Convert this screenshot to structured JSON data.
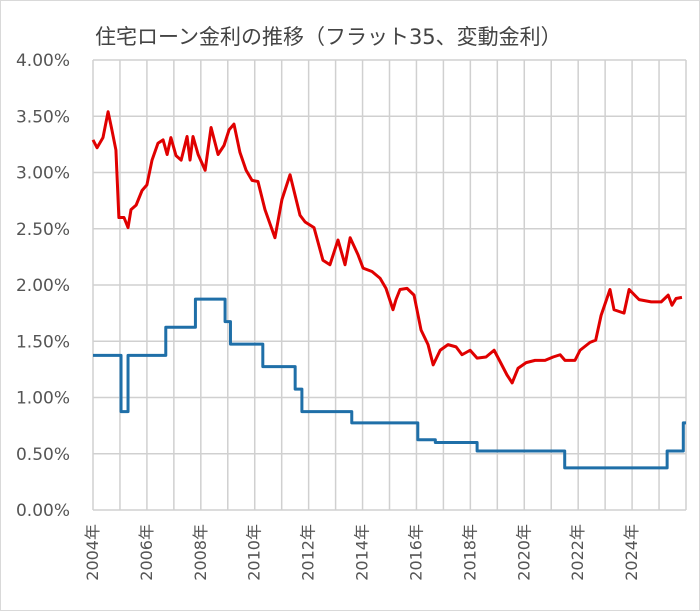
{
  "chart_data": {
    "type": "line",
    "title": "住宅ローン金利の推移（フラット35、変動金利）",
    "xlabel": "",
    "ylabel": "",
    "xlim": [
      2004,
      2026
    ],
    "ylim": [
      0,
      4
    ],
    "grid": true,
    "y_ticks": [
      "0.00%",
      "0.50%",
      "1.00%",
      "1.50%",
      "2.00%",
      "2.50%",
      "3.00%",
      "3.50%",
      "4.00%"
    ],
    "x_ticks": [
      "2004年",
      "2006年",
      "2008年",
      "2010年",
      "2012年",
      "2014年",
      "2016年",
      "2018年",
      "2020年",
      "2022年",
      "2024年"
    ],
    "series": [
      {
        "name": "フラット35",
        "color": "#e00000",
        "x": [
          2004.0,
          2004.15,
          2004.37,
          2004.56,
          2004.7,
          2004.85,
          2004.96,
          2005.15,
          2005.3,
          2005.41,
          2005.6,
          2005.82,
          2006.0,
          2006.19,
          2006.41,
          2006.6,
          2006.75,
          2006.89,
          2007.08,
          2007.27,
          2007.49,
          2007.6,
          2007.71,
          2007.9,
          2008.16,
          2008.38,
          2008.64,
          2008.86,
          2009.05,
          2009.23,
          2009.45,
          2009.68,
          2009.9,
          2010.12,
          2010.38,
          2010.75,
          2011.01,
          2011.31,
          2011.68,
          2011.87,
          2012.2,
          2012.53,
          2012.79,
          2013.09,
          2013.35,
          2013.54,
          2013.83,
          2014.02,
          2014.35,
          2014.65,
          2014.87,
          2015.13,
          2015.24,
          2015.39,
          2015.65,
          2015.91,
          2016.17,
          2016.43,
          2016.62,
          2016.88,
          2017.17,
          2017.47,
          2017.69,
          2017.99,
          2018.25,
          2018.58,
          2018.88,
          2019.1,
          2019.36,
          2019.55,
          2019.77,
          2020.07,
          2020.4,
          2020.77,
          2021.07,
          2021.33,
          2021.51,
          2021.88,
          2022.07,
          2022.44,
          2022.65,
          2022.85,
          2023.18,
          2023.33,
          2023.7,
          2023.89,
          2024.26,
          2024.71,
          2025.08,
          2025.34,
          2025.48,
          2025.63,
          2025.85
        ],
        "values": [
          3.29,
          3.22,
          3.31,
          3.54,
          3.38,
          3.2,
          2.6,
          2.6,
          2.51,
          2.67,
          2.71,
          2.84,
          2.89,
          3.11,
          3.26,
          3.29,
          3.16,
          3.31,
          3.15,
          3.11,
          3.32,
          3.11,
          3.32,
          3.16,
          3.02,
          3.4,
          3.16,
          3.24,
          3.38,
          3.43,
          3.18,
          3.02,
          2.93,
          2.92,
          2.67,
          2.42,
          2.76,
          2.98,
          2.62,
          2.56,
          2.51,
          2.22,
          2.18,
          2.4,
          2.18,
          2.42,
          2.27,
          2.15,
          2.12,
          2.06,
          1.97,
          1.78,
          1.87,
          1.96,
          1.97,
          1.91,
          1.6,
          1.47,
          1.29,
          1.42,
          1.47,
          1.45,
          1.38,
          1.42,
          1.35,
          1.36,
          1.42,
          1.32,
          1.2,
          1.13,
          1.26,
          1.31,
          1.33,
          1.33,
          1.36,
          1.38,
          1.33,
          1.33,
          1.42,
          1.49,
          1.51,
          1.73,
          1.96,
          1.78,
          1.75,
          1.96,
          1.87,
          1.85,
          1.85,
          1.91,
          1.82,
          1.88,
          1.89
        ]
      },
      {
        "name": "変動金利",
        "color": "#1f6fa8",
        "step": true,
        "x": [
          2004.0,
          2005.04,
          2005.3,
          2006.7,
          2007.8,
          2008.9,
          2009.1,
          2010.3,
          2011.5,
          2011.75,
          2013.6,
          2016.05,
          2016.7,
          2018.25,
          2021.5,
          2025.3,
          2025.9,
          2026.0
        ],
        "values": [
          1.375,
          0.875,
          1.375,
          1.625,
          1.875,
          1.675,
          1.475,
          1.275,
          1.075,
          0.875,
          0.775,
          0.625,
          0.6,
          0.525,
          0.375,
          0.525,
          0.775,
          0.775
        ]
      }
    ]
  }
}
